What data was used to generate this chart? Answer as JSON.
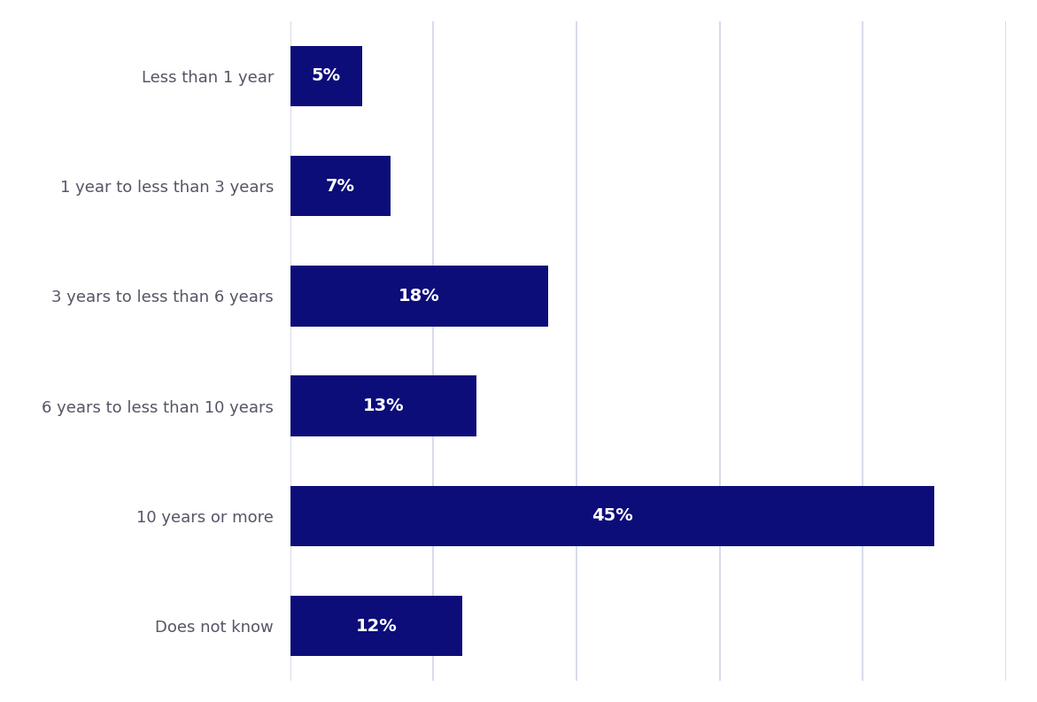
{
  "categories": [
    "Less than 1 year",
    "1 year to less than 3 years",
    "3 years to less than 6 years",
    "6 years to less than 10 years",
    "10 years or more",
    "Does not know"
  ],
  "values": [
    5,
    7,
    18,
    13,
    45,
    12
  ],
  "labels": [
    "5%",
    "7%",
    "18%",
    "13%",
    "45%",
    "12%"
  ],
  "bar_color": "#0d0d7a",
  "background_color": "#ffffff",
  "grid_color": "#d0d4e8",
  "label_color": "#ffffff",
  "ytick_color": "#555566",
  "label_fontsize": 14,
  "ytick_fontsize": 13,
  "xlim": [
    0,
    50
  ],
  "bar_height": 0.55
}
